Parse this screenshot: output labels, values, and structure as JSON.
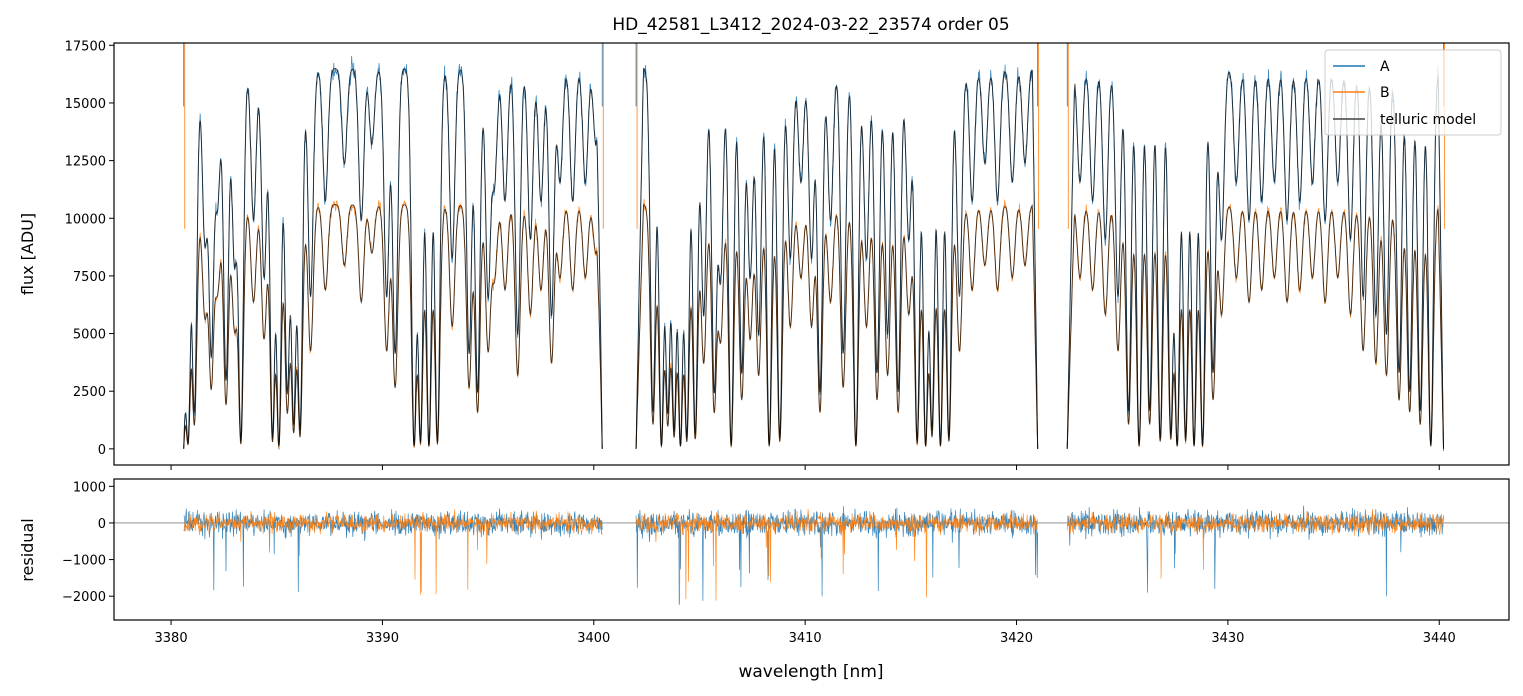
{
  "chart_data": [
    {
      "panel": "top",
      "type": "line",
      "title": "HD_42581_L3412_2024-03-22_23574  order 05",
      "xlabel": "",
      "ylabel": "flux [ADU]",
      "xlim": [
        3377.3,
        3443.3
      ],
      "ylim": [
        -700,
        17600
      ],
      "yticks": [
        0,
        2500,
        5000,
        7500,
        10000,
        12500,
        15000,
        17500
      ],
      "xticks": [
        3380,
        3390,
        3400,
        3410,
        3420,
        3430,
        3440
      ],
      "grid": false,
      "legend": {
        "position": "top-right",
        "entries": [
          "A",
          "B",
          "telluric model"
        ]
      },
      "segments": [
        [
          3380.6,
          3400.4
        ],
        [
          3402.0,
          3421.0
        ],
        [
          3422.4,
          3440.2
        ]
      ],
      "absorption_lines": [
        [
          3380.8,
          0.97
        ],
        [
          3381.1,
          0.9
        ],
        [
          3381.6,
          0.45
        ],
        [
          3381.9,
          0.75
        ],
        [
          3382.2,
          0.35
        ],
        [
          3382.6,
          0.82
        ],
        [
          3383.0,
          0.5
        ],
        [
          3383.3,
          0.98
        ],
        [
          3383.9,
          0.4
        ],
        [
          3384.4,
          0.55
        ],
        [
          3384.8,
          0.97
        ],
        [
          3385.1,
          0.99
        ],
        [
          3385.5,
          0.85
        ],
        [
          3385.8,
          0.93
        ],
        [
          3386.1,
          0.95
        ],
        [
          3386.6,
          0.6
        ],
        [
          3387.3,
          0.35
        ],
        [
          3388.2,
          0.25
        ],
        [
          3389.0,
          0.4
        ],
        [
          3389.5,
          0.2
        ],
        [
          3390.2,
          0.6
        ],
        [
          3390.6,
          0.75
        ],
        [
          3391.5,
          0.99
        ],
        [
          3391.8,
          0.98
        ],
        [
          3392.2,
          0.99
        ],
        [
          3392.6,
          0.98
        ],
        [
          3393.3,
          0.5
        ],
        [
          3394.1,
          0.75
        ],
        [
          3394.5,
          0.85
        ],
        [
          3395.0,
          0.6
        ],
        [
          3395.3,
          0.3
        ],
        [
          3395.8,
          0.35
        ],
        [
          3396.4,
          0.7
        ],
        [
          3397.0,
          0.45
        ],
        [
          3397.5,
          0.35
        ],
        [
          3398.0,
          0.65
        ],
        [
          3398.4,
          0.3
        ],
        [
          3399.0,
          0.35
        ],
        [
          3399.6,
          0.3
        ],
        [
          3400.1,
          0.2
        ],
        [
          3402.8,
          0.9
        ],
        [
          3403.2,
          0.99
        ],
        [
          3403.5,
          0.9
        ],
        [
          3403.8,
          0.95
        ],
        [
          3404.1,
          0.99
        ],
        [
          3404.4,
          0.97
        ],
        [
          3404.8,
          0.96
        ],
        [
          3405.2,
          0.65
        ],
        [
          3405.7,
          0.85
        ],
        [
          3406.0,
          0.55
        ],
        [
          3406.5,
          0.99
        ],
        [
          3407.0,
          0.8
        ],
        [
          3407.4,
          0.55
        ],
        [
          3407.8,
          0.7
        ],
        [
          3408.3,
          0.99
        ],
        [
          3408.8,
          0.97
        ],
        [
          3409.3,
          0.5
        ],
        [
          3409.8,
          0.3
        ],
        [
          3410.3,
          0.5
        ],
        [
          3410.7,
          0.85
        ],
        [
          3411.2,
          0.4
        ],
        [
          3411.8,
          0.75
        ],
        [
          3412.4,
          0.99
        ],
        [
          3412.9,
          0.5
        ],
        [
          3413.4,
          0.8
        ],
        [
          3413.9,
          0.7
        ],
        [
          3414.4,
          0.85
        ],
        [
          3414.9,
          0.45
        ],
        [
          3415.3,
          0.98
        ],
        [
          3415.7,
          0.99
        ],
        [
          3416.0,
          0.95
        ],
        [
          3416.4,
          0.99
        ],
        [
          3416.8,
          0.97
        ],
        [
          3417.3,
          0.6
        ],
        [
          3417.9,
          0.35
        ],
        [
          3418.5,
          0.25
        ],
        [
          3419.1,
          0.35
        ],
        [
          3419.8,
          0.3
        ],
        [
          3420.4,
          0.25
        ],
        [
          3423.0,
          0.3
        ],
        [
          3423.6,
          0.35
        ],
        [
          3424.2,
          0.45
        ],
        [
          3424.8,
          0.6
        ],
        [
          3425.3,
          0.9
        ],
        [
          3425.8,
          0.99
        ],
        [
          3426.3,
          0.9
        ],
        [
          3426.8,
          0.97
        ],
        [
          3427.3,
          0.96
        ],
        [
          3427.6,
          0.99
        ],
        [
          3428.0,
          0.97
        ],
        [
          3428.4,
          0.99
        ],
        [
          3428.8,
          0.99
        ],
        [
          3429.3,
          0.8
        ],
        [
          3429.7,
          0.45
        ],
        [
          3430.4,
          0.3
        ],
        [
          3431.0,
          0.4
        ],
        [
          3431.6,
          0.35
        ],
        [
          3432.2,
          0.3
        ],
        [
          3432.8,
          0.4
        ],
        [
          3433.4,
          0.35
        ],
        [
          3434.0,
          0.3
        ],
        [
          3434.6,
          0.4
        ],
        [
          3435.2,
          0.3
        ],
        [
          3435.8,
          0.45
        ],
        [
          3436.4,
          0.6
        ],
        [
          3437.0,
          0.65
        ],
        [
          3437.5,
          0.7
        ],
        [
          3438.1,
          0.8
        ],
        [
          3438.6,
          0.85
        ],
        [
          3439.1,
          0.9
        ],
        [
          3439.6,
          0.99
        ]
      ],
      "series": [
        {
          "name": "A",
          "color": "#1f77b4",
          "continuum": 16500,
          "noise": 420
        },
        {
          "name": "B",
          "color": "#ff7f0e",
          "continuum": 10600,
          "noise": 280
        },
        {
          "name": "telluric model",
          "color": "#404040"
        }
      ]
    },
    {
      "panel": "bottom",
      "type": "line",
      "title": "",
      "xlabel": "wavelength [nm]",
      "ylabel": "residual",
      "xlim": [
        3377.3,
        3443.3
      ],
      "ylim": [
        -2650,
        1200
      ],
      "yticks": [
        -2000,
        -1000,
        0,
        1000
      ],
      "xticks": [
        3380,
        3390,
        3400,
        3410,
        3420,
        3430,
        3440
      ],
      "zero_line": true,
      "series": [
        {
          "name": "A",
          "color": "#1f77b4",
          "noise": 340
        },
        {
          "name": "B",
          "color": "#ff7f0e",
          "noise": 260
        }
      ]
    }
  ]
}
